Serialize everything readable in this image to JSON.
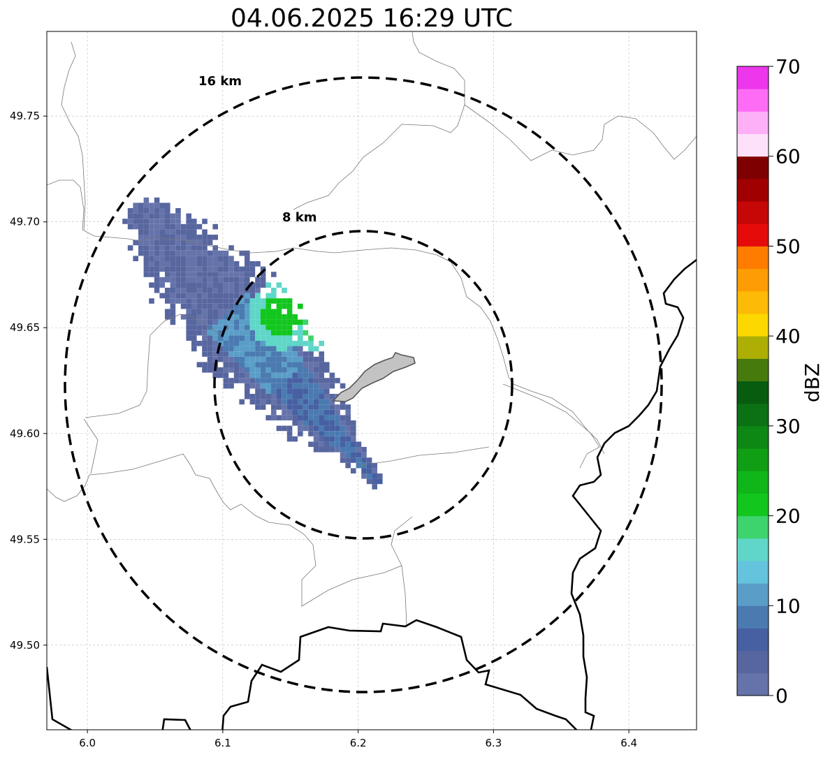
{
  "title": "04.06.2025 16:29 UTC",
  "map": {
    "lon_range": [
      5.97,
      6.45
    ],
    "lat_range": [
      49.46,
      49.79
    ],
    "x_ticks": [
      "6.0",
      "6.1",
      "6.2",
      "6.3",
      "6.4"
    ],
    "x_tick_values": [
      6.0,
      6.1,
      6.2,
      6.3,
      6.4
    ],
    "y_ticks": [
      "49.50",
      "49.55",
      "49.60",
      "49.65",
      "49.70",
      "49.75"
    ],
    "y_tick_values": [
      49.5,
      49.55,
      49.6,
      49.65,
      49.7,
      49.75
    ],
    "grid": "dashed",
    "radar_center": {
      "lon": 6.204,
      "lat": 49.623
    },
    "rings": [
      {
        "label": "8 km",
        "radius_km": 8
      },
      {
        "label": "16 km",
        "radius_km": 16
      }
    ]
  },
  "colorbar": {
    "label": "dBZ",
    "ticks": [
      "0",
      "10",
      "20",
      "30",
      "40",
      "50",
      "60",
      "70"
    ],
    "tick_values": [
      0,
      10,
      20,
      30,
      40,
      50,
      60,
      70
    ],
    "vmin": 0,
    "vmax": 70,
    "step": 2.5,
    "colors": [
      "#6673aa",
      "#57669f",
      "#4760a2",
      "#4a7ab0",
      "#5a9ec8",
      "#64c3dd",
      "#5fd6c8",
      "#3dd46d",
      "#12c61e",
      "#10b619",
      "#0f9e14",
      "#0e8814",
      "#0b7114",
      "#085c0f",
      "#477a0c",
      "#adaf05",
      "#fdd800",
      "#fdba06",
      "#fd9c04",
      "#ff7c00",
      "#e60b0b",
      "#c60707",
      "#a10000",
      "#7f0000",
      "#ffe0fb",
      "#feb0f7",
      "#fe6cf6",
      "#ec37ec"
    ]
  }
}
